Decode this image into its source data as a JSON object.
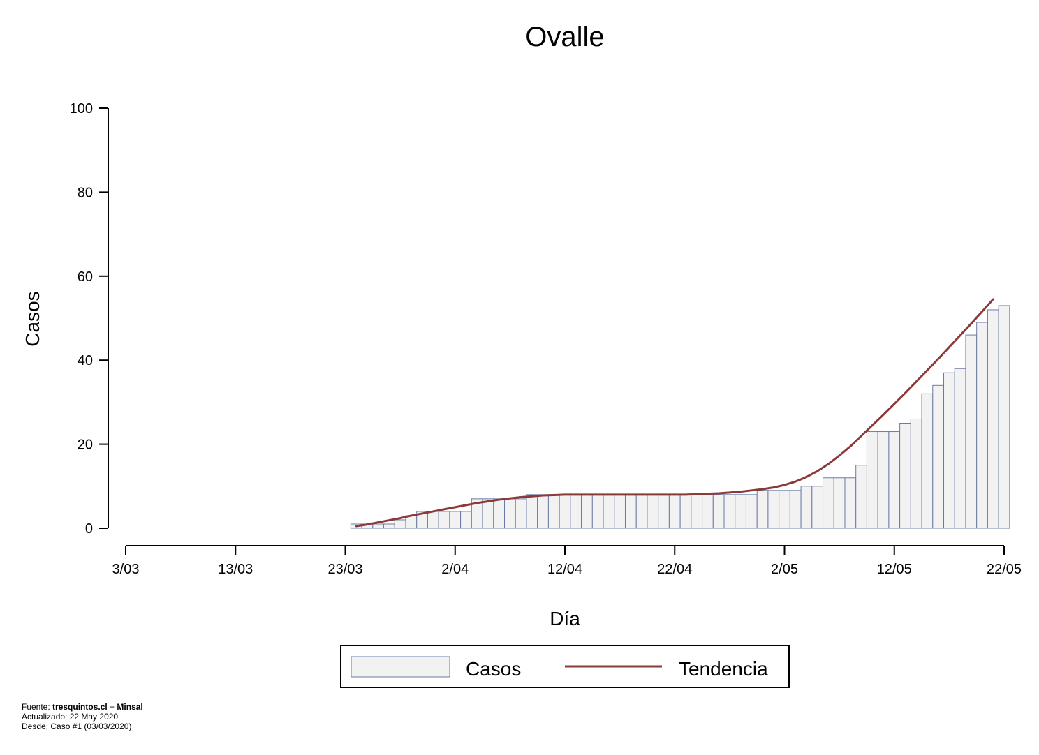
{
  "colors": {
    "bar_fill": "#f2f2f2",
    "bar_stroke": "#6b7ba4",
    "trend": "#8b3a3a",
    "axis": "#000000"
  },
  "chart_data": {
    "type": "bar",
    "title": "Ovalle",
    "xlabel": "Día",
    "ylabel": "Casos",
    "ylim": [
      0,
      100
    ],
    "yticks": [
      0,
      20,
      40,
      60,
      80,
      100
    ],
    "xticks": [
      "3/03",
      "13/03",
      "23/03",
      "2/04",
      "12/04",
      "22/04",
      "2/05",
      "12/05",
      "22/05"
    ],
    "x_start": "3/03",
    "x_end": "22/05",
    "first_bar_day": "24/03",
    "values": [
      1,
      1,
      1,
      1,
      2,
      3,
      4,
      4,
      4,
      4,
      4,
      7,
      7,
      7,
      7,
      7,
      8,
      8,
      8,
      8,
      8,
      8,
      8,
      8,
      8,
      8,
      8,
      8,
      8,
      8,
      8,
      8,
      8,
      8,
      8,
      8,
      8,
      9,
      9,
      9,
      9,
      10,
      10,
      12,
      12,
      12,
      15,
      23,
      23,
      23,
      25,
      26,
      32,
      34,
      37,
      38,
      46,
      49,
      52,
      53
    ],
    "series": [
      {
        "name": "Casos",
        "kind": "bar"
      },
      {
        "name": "Tendencia",
        "kind": "line"
      }
    ],
    "trend": [
      0.5,
      0.9,
      1.4,
      1.9,
      2.4,
      3.0,
      3.5,
      4.0,
      4.5,
      5.0,
      5.5,
      6.0,
      6.4,
      6.8,
      7.1,
      7.4,
      7.6,
      7.8,
      7.9,
      8.0,
      8.0,
      8.0,
      8.0,
      8.0,
      8.0,
      8.0,
      8.0,
      8.0,
      8.0,
      8.0,
      8.0,
      8.1,
      8.2,
      8.3,
      8.5,
      8.7,
      9.0,
      9.3,
      9.7,
      10.3,
      11.1,
      12.2,
      13.6,
      15.3,
      17.3,
      19.5,
      22.0,
      24.5,
      27.0,
      29.6,
      32.2,
      34.9,
      37.6,
      40.3,
      43.1,
      45.9,
      48.7,
      51.6,
      54.5
    ],
    "legend_position": "bottom",
    "grid": false
  },
  "footer": {
    "source_label": "Fuente: ",
    "source_site": "tresquintos.cl",
    "source_plus": " + ",
    "source_org": "Minsal",
    "updated": "Actualizado: 22 May 2020",
    "since": "Desde: Caso #1  (03/03/2020)"
  }
}
